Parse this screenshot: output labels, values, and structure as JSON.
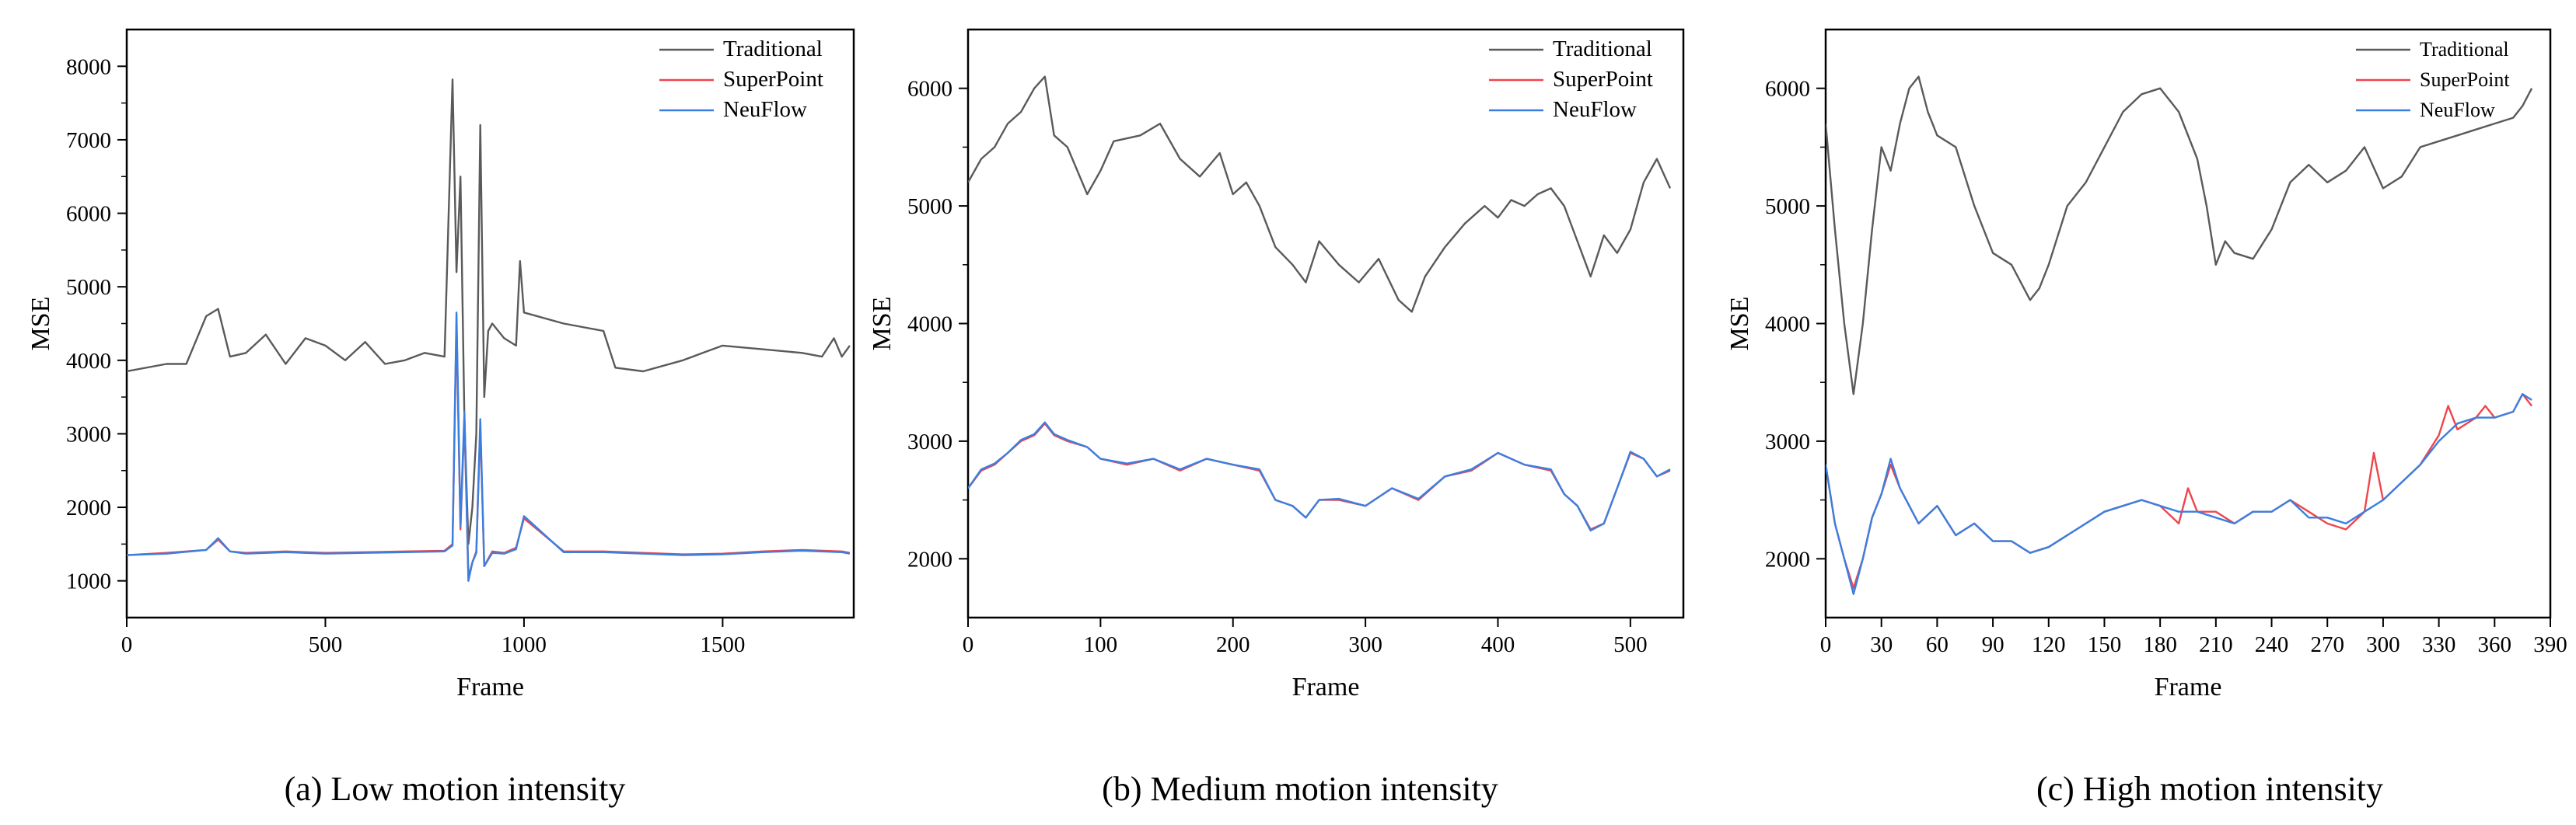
{
  "colors": {
    "traditional": "#5a5a5a",
    "superpoint": "#f0454c",
    "neuflow": "#3a7fe0",
    "axis": "#000000",
    "background": "#ffffff"
  },
  "chart_data": [
    {
      "type": "line",
      "caption": "(a) Low motion intensity",
      "xlabel": "Frame",
      "ylabel": "MSE",
      "xlim": [
        0,
        1830
      ],
      "ylim": [
        500,
        8500
      ],
      "xticks": [
        0,
        500,
        1000,
        1500
      ],
      "yticks": [
        1000,
        2000,
        3000,
        4000,
        5000,
        6000,
        7000,
        8000
      ],
      "grid": false,
      "legend_position": "top-right",
      "series": [
        {
          "name": "Traditional",
          "color_key": "traditional",
          "x": [
            0,
            100,
            150,
            200,
            230,
            260,
            300,
            350,
            400,
            450,
            500,
            550,
            600,
            650,
            700,
            750,
            800,
            820,
            830,
            840,
            850,
            860,
            870,
            880,
            890,
            900,
            910,
            920,
            950,
            980,
            990,
            1000,
            1100,
            1200,
            1230,
            1300,
            1400,
            1450,
            1500,
            1600,
            1700,
            1750,
            1780,
            1800,
            1820
          ],
          "values": [
            3850,
            3950,
            3950,
            4600,
            4700,
            4050,
            4100,
            4350,
            3950,
            4300,
            4200,
            4000,
            4250,
            3950,
            4000,
            4100,
            4050,
            7820,
            5200,
            6500,
            3200,
            1500,
            2000,
            3000,
            7200,
            3500,
            4400,
            4500,
            4300,
            4200,
            5350,
            4650,
            4500,
            4400,
            3900,
            3850,
            4000,
            4100,
            4200,
            4150,
            4100,
            4050,
            4300,
            4050,
            4200
          ]
        },
        {
          "name": "SuperPoint",
          "color_key": "superpoint",
          "x": [
            0,
            100,
            200,
            230,
            260,
            300,
            400,
            500,
            600,
            700,
            800,
            820,
            830,
            840,
            850,
            860,
            870,
            880,
            890,
            900,
            920,
            950,
            980,
            1000,
            1100,
            1200,
            1300,
            1400,
            1500,
            1600,
            1700,
            1800,
            1820
          ],
          "values": [
            1350,
            1380,
            1420,
            1560,
            1400,
            1380,
            1400,
            1380,
            1390,
            1400,
            1410,
            1500,
            4500,
            1700,
            3200,
            1050,
            1250,
            1400,
            3100,
            1200,
            1400,
            1380,
            1450,
            1850,
            1400,
            1400,
            1380,
            1360,
            1370,
            1400,
            1420,
            1400,
            1380
          ]
        },
        {
          "name": "NeuFlow",
          "color_key": "neuflow",
          "x": [
            0,
            100,
            200,
            230,
            260,
            300,
            400,
            500,
            600,
            700,
            800,
            820,
            830,
            840,
            850,
            860,
            870,
            880,
            890,
            900,
            920,
            950,
            980,
            1000,
            1100,
            1200,
            1300,
            1400,
            1500,
            1600,
            1700,
            1800,
            1820
          ],
          "values": [
            1350,
            1370,
            1420,
            1580,
            1400,
            1370,
            1390,
            1370,
            1380,
            1390,
            1400,
            1480,
            4650,
            1750,
            3300,
            1000,
            1250,
            1380,
            3200,
            1200,
            1380,
            1370,
            1430,
            1880,
            1390,
            1390,
            1370,
            1350,
            1360,
            1390,
            1410,
            1390,
            1370
          ]
        }
      ]
    },
    {
      "type": "line",
      "caption": "(b) Medium motion intensity",
      "xlabel": "Frame",
      "ylabel": "MSE",
      "xlim": [
        0,
        540
      ],
      "ylim": [
        1500,
        6500
      ],
      "xticks": [
        0,
        100,
        200,
        300,
        400,
        500
      ],
      "yticks": [
        2000,
        3000,
        4000,
        5000,
        6000
      ],
      "grid": false,
      "legend_position": "top-right",
      "series": [
        {
          "name": "Traditional",
          "color_key": "traditional",
          "x": [
            0,
            10,
            20,
            30,
            40,
            50,
            58,
            65,
            75,
            90,
            100,
            110,
            130,
            145,
            160,
            175,
            190,
            200,
            210,
            220,
            232,
            245,
            255,
            265,
            280,
            295,
            310,
            325,
            335,
            345,
            360,
            375,
            390,
            400,
            410,
            420,
            430,
            440,
            450,
            460,
            470,
            480,
            490,
            500,
            510,
            520,
            530
          ],
          "values": [
            5200,
            5400,
            5500,
            5700,
            5800,
            6000,
            6100,
            5600,
            5500,
            5100,
            5300,
            5550,
            5600,
            5700,
            5400,
            5250,
            5450,
            5100,
            5200,
            5000,
            4650,
            4500,
            4350,
            4700,
            4500,
            4350,
            4550,
            4200,
            4100,
            4400,
            4650,
            4850,
            5000,
            4900,
            5050,
            5000,
            5100,
            5150,
            5000,
            4700,
            4400,
            4750,
            4600,
            4800,
            5200,
            5400,
            5150
          ]
        },
        {
          "name": "SuperPoint",
          "color_key": "superpoint",
          "x": [
            0,
            10,
            20,
            30,
            40,
            50,
            58,
            65,
            75,
            90,
            100,
            120,
            140,
            160,
            180,
            200,
            220,
            232,
            245,
            255,
            265,
            280,
            300,
            320,
            340,
            360,
            380,
            400,
            420,
            440,
            450,
            460,
            470,
            480,
            490,
            500,
            510,
            520,
            530
          ],
          "values": [
            2600,
            2750,
            2800,
            2900,
            3000,
            3050,
            3150,
            3050,
            3000,
            2950,
            2850,
            2800,
            2850,
            2750,
            2850,
            2800,
            2750,
            2500,
            2450,
            2350,
            2500,
            2500,
            2450,
            2600,
            2500,
            2700,
            2750,
            2900,
            2800,
            2750,
            2550,
            2450,
            2250,
            2300,
            2600,
            2900,
            2850,
            2700,
            2750
          ]
        },
        {
          "name": "NeuFlow",
          "color_key": "neuflow",
          "x": [
            0,
            10,
            20,
            30,
            40,
            50,
            58,
            65,
            75,
            90,
            100,
            120,
            140,
            160,
            180,
            200,
            220,
            232,
            245,
            255,
            265,
            280,
            300,
            320,
            340,
            360,
            380,
            400,
            420,
            440,
            450,
            460,
            470,
            480,
            490,
            500,
            510,
            520,
            530
          ],
          "values": [
            2600,
            2760,
            2810,
            2900,
            3010,
            3060,
            3160,
            3060,
            3010,
            2950,
            2850,
            2810,
            2850,
            2760,
            2850,
            2800,
            2760,
            2500,
            2450,
            2350,
            2500,
            2510,
            2450,
            2600,
            2510,
            2700,
            2760,
            2900,
            2800,
            2760,
            2550,
            2450,
            2240,
            2300,
            2600,
            2910,
            2850,
            2700,
            2760
          ]
        }
      ]
    },
    {
      "type": "line",
      "caption": "(c) High motion intensity",
      "xlabel": "Frame",
      "ylabel": "MSE",
      "xlim": [
        0,
        390
      ],
      "ylim": [
        1500,
        6500
      ],
      "xticks": [
        0,
        30,
        60,
        90,
        120,
        150,
        180,
        210,
        240,
        270,
        300,
        330,
        360,
        390
      ],
      "yticks": [
        2000,
        3000,
        4000,
        5000,
        6000
      ],
      "grid": false,
      "legend_position": "top-right",
      "series": [
        {
          "name": "Traditional",
          "color_key": "traditional",
          "x": [
            0,
            5,
            10,
            15,
            20,
            25,
            30,
            35,
            40,
            45,
            50,
            55,
            60,
            70,
            80,
            90,
            100,
            110,
            115,
            120,
            130,
            140,
            150,
            160,
            170,
            180,
            190,
            200,
            205,
            210,
            215,
            220,
            230,
            240,
            250,
            260,
            270,
            280,
            290,
            300,
            310,
            320,
            330,
            340,
            350,
            360,
            370,
            375,
            380
          ],
          "values": [
            5700,
            4800,
            4000,
            3400,
            4000,
            4800,
            5500,
            5300,
            5700,
            6000,
            6100,
            5800,
            5600,
            5500,
            5000,
            4600,
            4500,
            4200,
            4300,
            4500,
            5000,
            5200,
            5500,
            5800,
            5950,
            6000,
            5800,
            5400,
            5000,
            4500,
            4700,
            4600,
            4550,
            4800,
            5200,
            5350,
            5200,
            5300,
            5500,
            5150,
            5250,
            5500,
            5550,
            5600,
            5650,
            5700,
            5750,
            5850,
            6000
          ]
        },
        {
          "name": "SuperPoint",
          "color_key": "superpoint",
          "x": [
            0,
            5,
            10,
            15,
            20,
            25,
            30,
            35,
            40,
            50,
            60,
            70,
            80,
            90,
            100,
            110,
            120,
            130,
            140,
            150,
            160,
            170,
            180,
            190,
            195,
            200,
            210,
            220,
            230,
            240,
            250,
            260,
            270,
            280,
            290,
            295,
            300,
            310,
            320,
            330,
            335,
            340,
            350,
            355,
            360,
            370,
            375,
            380
          ],
          "values": [
            2800,
            2300,
            2000,
            1750,
            2000,
            2350,
            2550,
            2800,
            2600,
            2300,
            2450,
            2200,
            2300,
            2150,
            2150,
            2050,
            2100,
            2200,
            2300,
            2400,
            2450,
            2500,
            2450,
            2300,
            2600,
            2400,
            2400,
            2300,
            2400,
            2400,
            2500,
            2400,
            2300,
            2250,
            2400,
            2900,
            2500,
            2650,
            2800,
            3050,
            3300,
            3100,
            3200,
            3300,
            3200,
            3250,
            3400,
            3300
          ]
        },
        {
          "name": "NeuFlow",
          "color_key": "neuflow",
          "x": [
            0,
            5,
            10,
            15,
            20,
            25,
            30,
            35,
            40,
            50,
            60,
            70,
            80,
            90,
            100,
            110,
            120,
            130,
            140,
            150,
            160,
            170,
            180,
            190,
            200,
            210,
            220,
            230,
            240,
            250,
            260,
            270,
            280,
            290,
            300,
            310,
            320,
            330,
            340,
            350,
            360,
            370,
            375,
            380
          ],
          "values": [
            2800,
            2300,
            2000,
            1700,
            2000,
            2350,
            2550,
            2850,
            2600,
            2300,
            2450,
            2200,
            2300,
            2150,
            2150,
            2050,
            2100,
            2200,
            2300,
            2400,
            2450,
            2500,
            2450,
            2400,
            2400,
            2350,
            2300,
            2400,
            2400,
            2500,
            2350,
            2350,
            2300,
            2400,
            2500,
            2650,
            2800,
            3000,
            3150,
            3200,
            3200,
            3250,
            3400,
            3350
          ]
        }
      ]
    }
  ]
}
